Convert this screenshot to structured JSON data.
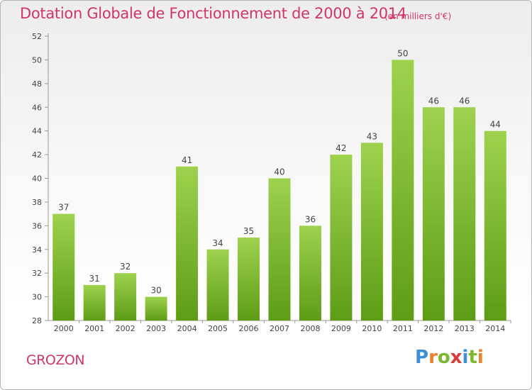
{
  "header": {
    "title": "Dotation Globale de Fonctionnement de 2000 à 2014",
    "unit": "(en milliers d'€)"
  },
  "footer": {
    "commune": "GROZON",
    "brand_letters": [
      "P",
      "r",
      "o",
      "x",
      "i",
      "t",
      "i"
    ]
  },
  "colors": {
    "title": "#d2356b",
    "bar_light": "#9ed24e",
    "bar_dark": "#5e9c16",
    "brand": [
      "#3d8fd6",
      "#e9822b",
      "#7cb82f",
      "#d83b3b",
      "#3d8fd6",
      "#7cb82f",
      "#e9822b"
    ]
  },
  "chart_data": {
    "type": "bar",
    "categories": [
      "2000",
      "2001",
      "2002",
      "2003",
      "2004",
      "2005",
      "2006",
      "2007",
      "2008",
      "2009",
      "2010",
      "2011",
      "2012",
      "2013",
      "2014"
    ],
    "values": [
      37,
      31,
      32,
      30,
      41,
      34,
      35,
      40,
      36,
      42,
      43,
      50,
      46,
      46,
      44
    ],
    "ylim": [
      28,
      52
    ],
    "yticks": [
      28,
      30,
      32,
      34,
      36,
      38,
      40,
      42,
      44,
      46,
      48,
      50,
      52
    ],
    "grid": false,
    "data_labels": true
  }
}
